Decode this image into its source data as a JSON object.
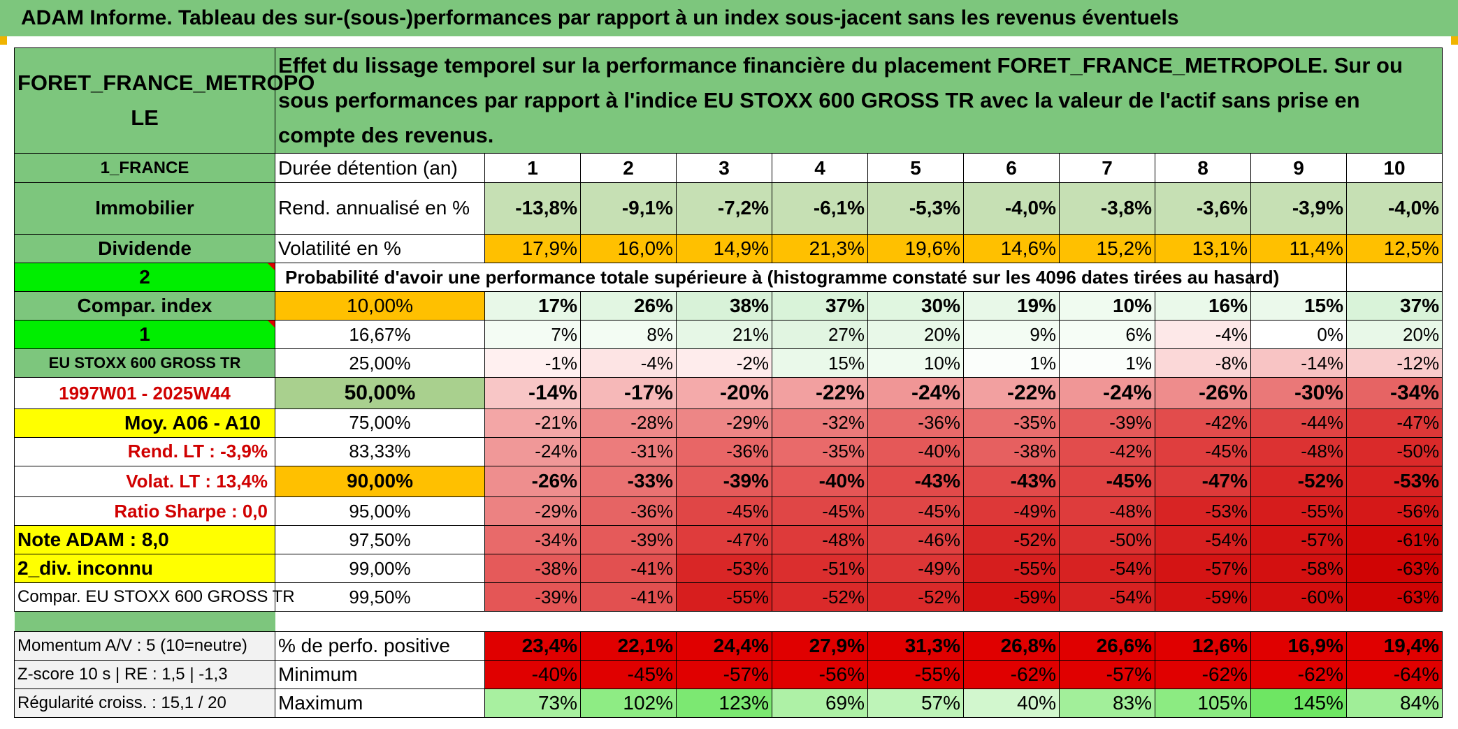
{
  "header": {
    "title": "ADAM Informe. Tableau des sur-(sous-)performances par rapport à un index sous-jacent sans les revenus éventuels"
  },
  "left_panel": {
    "fund_name": "FORET_FRANCE_METROPO LE",
    "country": "1_FRANCE",
    "category": "Immobilier",
    "dividend_label": "Dividende",
    "option_2": "2",
    "compar_index_label": "Compar. index",
    "option_1": "1",
    "index_name": "EU STOXX 600 GROSS TR",
    "period": "1997W01 - 2025W44",
    "avg_label": "Moy. A06 - A10",
    "rend_lt": "Rend. LT :    -3,9%",
    "volat_lt": "Volat. LT :    13,4%",
    "sharpe": "Ratio Sharpe :    0,0",
    "note_adam": "Note ADAM : 8,0",
    "div_unknown": "2_div. inconnu",
    "compar_full": "Compar. EU STOXX 600 GROSS TR",
    "momentum": "Momentum A/V : 5 (10=neutre)",
    "zscore": "Z-score 10 s | RE : 1,5 | -1,3",
    "regularite": "Régularité croiss. : 15,1 / 20"
  },
  "description": "Effet du lissage temporel sur la performance financière du placement FORET_FRANCE_METROPOLE. Sur ou sous performances par rapport à l'indice EU STOXX 600 GROSS TR avec la valeur de l'actif sans prise en compte des revenus.",
  "table": {
    "duration_label": "Durée détention (an)",
    "durations": [
      "1",
      "2",
      "3",
      "4",
      "5",
      "6",
      "7",
      "8",
      "9",
      "10"
    ],
    "rend_label": "Rend. annualisé en %",
    "rend": [
      "-13,8%",
      "-9,1%",
      "-7,2%",
      "-6,1%",
      "-5,3%",
      "-4,0%",
      "-3,8%",
      "-3,6%",
      "-3,9%",
      "-4,0%"
    ],
    "vol_label": "Volatilité en %",
    "vol": [
      "17,9%",
      "16,0%",
      "14,9%",
      "21,3%",
      "19,6%",
      "14,6%",
      "15,2%",
      "13,1%",
      "11,4%",
      "12,5%"
    ],
    "prob_label": "Probabilité d'avoir une performance totale supérieure à (histogramme constaté sur les 4096 dates tirées au hasard)",
    "prob_rows": [
      {
        "threshold": "10,00%",
        "values": [
          "17%",
          "26%",
          "38%",
          "37%",
          "30%",
          "19%",
          "10%",
          "16%",
          "15%",
          "37%"
        ]
      },
      {
        "threshold": "16,67%",
        "values": [
          "7%",
          "8%",
          "21%",
          "27%",
          "20%",
          "9%",
          "6%",
          "-4%",
          "0%",
          "20%"
        ]
      },
      {
        "threshold": "25,00%",
        "values": [
          "-1%",
          "-4%",
          "-2%",
          "15%",
          "10%",
          "1%",
          "1%",
          "-8%",
          "-14%",
          "-12%"
        ]
      },
      {
        "threshold": "50,00%",
        "values": [
          "-14%",
          "-17%",
          "-20%",
          "-22%",
          "-24%",
          "-22%",
          "-24%",
          "-26%",
          "-30%",
          "-34%"
        ]
      },
      {
        "threshold": "75,00%",
        "values": [
          "-21%",
          "-28%",
          "-29%",
          "-32%",
          "-36%",
          "-35%",
          "-39%",
          "-42%",
          "-44%",
          "-47%"
        ]
      },
      {
        "threshold": "83,33%",
        "values": [
          "-24%",
          "-31%",
          "-36%",
          "-35%",
          "-40%",
          "-38%",
          "-42%",
          "-45%",
          "-48%",
          "-50%"
        ]
      },
      {
        "threshold": "90,00%",
        "values": [
          "-26%",
          "-33%",
          "-39%",
          "-40%",
          "-43%",
          "-43%",
          "-45%",
          "-47%",
          "-52%",
          "-53%"
        ]
      },
      {
        "threshold": "95,00%",
        "values": [
          "-29%",
          "-36%",
          "-45%",
          "-45%",
          "-45%",
          "-49%",
          "-48%",
          "-53%",
          "-55%",
          "-56%"
        ]
      },
      {
        "threshold": "97,50%",
        "values": [
          "-34%",
          "-39%",
          "-47%",
          "-48%",
          "-46%",
          "-52%",
          "-50%",
          "-54%",
          "-57%",
          "-61%"
        ]
      },
      {
        "threshold": "99,00%",
        "values": [
          "-38%",
          "-41%",
          "-53%",
          "-51%",
          "-49%",
          "-55%",
          "-54%",
          "-57%",
          "-58%",
          "-63%"
        ]
      },
      {
        "threshold": "99,50%",
        "values": [
          "-39%",
          "-41%",
          "-55%",
          "-52%",
          "-52%",
          "-59%",
          "-54%",
          "-59%",
          "-60%",
          "-63%"
        ]
      }
    ],
    "pos_label": "% de perfo. positive",
    "pos": [
      "23,4%",
      "22,1%",
      "24,4%",
      "27,9%",
      "31,3%",
      "26,8%",
      "26,6%",
      "12,6%",
      "16,9%",
      "19,4%"
    ],
    "min_label": "Minimum",
    "min": [
      "-40%",
      "-45%",
      "-57%",
      "-56%",
      "-55%",
      "-62%",
      "-57%",
      "-62%",
      "-62%",
      "-64%"
    ],
    "max_label": "Maximum",
    "max": [
      "73%",
      "102%",
      "123%",
      "69%",
      "57%",
      "40%",
      "83%",
      "105%",
      "145%",
      "84%"
    ]
  },
  "colors": {
    "banner": "#7dc67d",
    "orange": "#ffc000",
    "yellow": "#ffff00",
    "bright_green": "#00ee00",
    "red_text": "#d00000"
  }
}
